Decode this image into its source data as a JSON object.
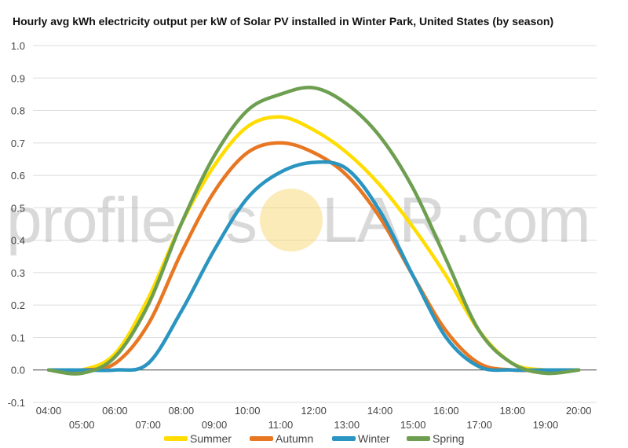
{
  "watermark": {
    "prefix": "profile",
    "suffix": ".com",
    "mid_left": "s",
    "mid_right": "LAR",
    "sun_color": "#f7d774"
  },
  "chart_data": {
    "type": "line",
    "title": "Hourly avg kWh electricity output per kW of Solar PV installed in Winter Park, United States (by season)",
    "xlabel": "",
    "ylabel": "",
    "ylim": [
      -0.1,
      1.0
    ],
    "yticks": [
      "-0.1",
      "0.0",
      "0.1",
      "0.2",
      "0.3",
      "0.4",
      "0.5",
      "0.6",
      "0.7",
      "0.8",
      "0.9",
      "1.0"
    ],
    "x": [
      "04:00",
      "05:00",
      "06:00",
      "07:00",
      "08:00",
      "09:00",
      "10:00",
      "11:00",
      "12:00",
      "13:00",
      "14:00",
      "15:00",
      "16:00",
      "17:00",
      "18:00",
      "19:00",
      "20:00"
    ],
    "grid": true,
    "legend_position": "bottom",
    "series": [
      {
        "name": "Summer",
        "color": "#ffdd00",
        "values": [
          0.0,
          0.0,
          0.05,
          0.22,
          0.45,
          0.63,
          0.75,
          0.78,
          0.74,
          0.67,
          0.57,
          0.44,
          0.29,
          0.12,
          0.02,
          0.0,
          0.0
        ]
      },
      {
        "name": "Autumn",
        "color": "#e87722",
        "values": [
          0.0,
          0.0,
          0.02,
          0.14,
          0.36,
          0.55,
          0.67,
          0.7,
          0.67,
          0.6,
          0.47,
          0.29,
          0.12,
          0.02,
          0.0,
          0.0,
          0.0
        ]
      },
      {
        "name": "Winter",
        "color": "#2a95c0",
        "values": [
          0.0,
          0.0,
          0.0,
          0.02,
          0.18,
          0.37,
          0.53,
          0.61,
          0.64,
          0.62,
          0.49,
          0.29,
          0.1,
          0.01,
          0.0,
          0.0,
          0.0
        ]
      },
      {
        "name": "Spring",
        "color": "#6e9f51",
        "values": [
          0.0,
          -0.01,
          0.04,
          0.2,
          0.45,
          0.66,
          0.8,
          0.85,
          0.87,
          0.82,
          0.72,
          0.56,
          0.34,
          0.12,
          0.02,
          -0.01,
          0.0
        ]
      }
    ]
  }
}
